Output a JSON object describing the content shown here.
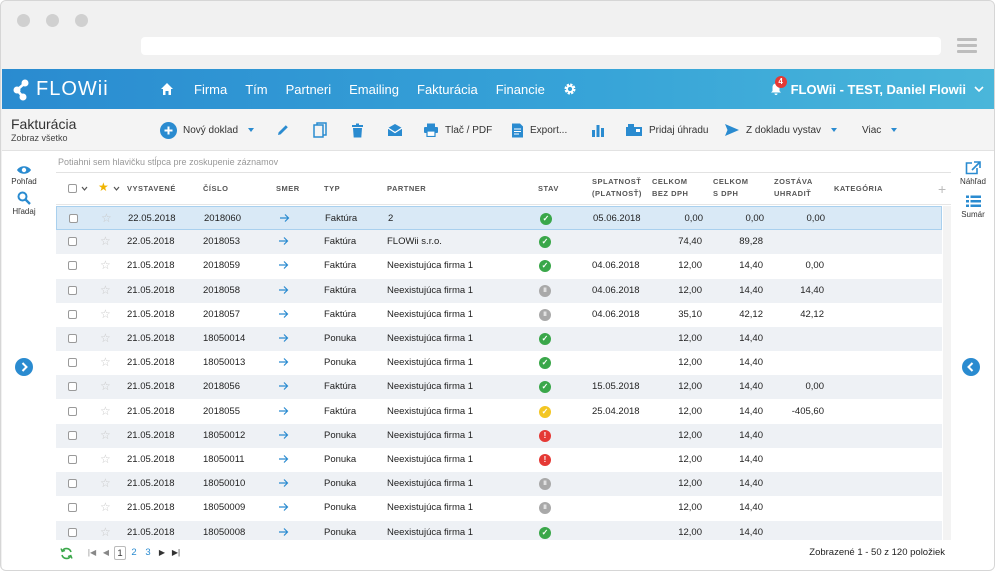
{
  "app": {
    "logo_text": "FLOWii",
    "brand_color": "#2a8bd0"
  },
  "nav": {
    "items": [
      "Firma",
      "Tím",
      "Partneri",
      "Emailing",
      "Fakturácia",
      "Financie"
    ],
    "notifications": "4",
    "user": "FLOWii - TEST, Daniel Flowii"
  },
  "toolbar": {
    "title": "Fakturácia",
    "subtitle": "Zobraz všetko",
    "new_doc": "Nový doklad",
    "print": "Tlač / PDF",
    "export": "Export...",
    "add_payment": "Pridaj úhradu",
    "issue_from": "Z dokladu vystav",
    "more": "Viac"
  },
  "left": {
    "view": "Pohľad",
    "search": "Hľadaj"
  },
  "right": {
    "preview": "Náhľad",
    "summary": "Sumár"
  },
  "grid": {
    "hint": "Potiahni sem hlavičku stĺpca pre zoskupenie záznamov",
    "headers": {
      "issued": "VYSTAVENÉ",
      "number": "ČÍSLO",
      "direction": "SMER",
      "type": "TYP",
      "partner": "PARTNER",
      "status": "STAV",
      "due1": "SPLATNOSŤ",
      "due2": "(PLATNOSŤ)",
      "net1": "CELKOM",
      "net2": "BEZ DPH",
      "gross1": "CELKOM",
      "gross2": "S DPH",
      "remain1": "ZOSTÁVA",
      "remain2": "UHRADIŤ",
      "category": "KATEGÓRIA"
    },
    "rows": [
      {
        "date": "22.05.2018",
        "num": "2018060",
        "type": "Faktúra",
        "partner": "2",
        "status": "ok",
        "due": "05.06.2018",
        "net": "0,00",
        "gross": "0,00",
        "remain": "0,00",
        "starred": false
      },
      {
        "date": "22.05.2018",
        "num": "2018053",
        "type": "Faktúra",
        "partner": "FLOWii s.r.o.",
        "status": "ok",
        "due": "",
        "net": "74,40",
        "gross": "89,28",
        "remain": "",
        "starred": false
      },
      {
        "date": "21.05.2018",
        "num": "2018059",
        "type": "Faktúra",
        "partner": "Neexistujúca firma 1",
        "status": "ok",
        "due": "04.06.2018",
        "net": "12,00",
        "gross": "14,40",
        "remain": "0,00",
        "starred": false
      },
      {
        "date": "21.05.2018",
        "num": "2018058",
        "type": "Faktúra",
        "partner": "Neexistujúca firma 1",
        "status": "pause",
        "due": "04.06.2018",
        "net": "12,00",
        "gross": "14,40",
        "remain": "14,40",
        "starred": false
      },
      {
        "date": "21.05.2018",
        "num": "2018057",
        "type": "Faktúra",
        "partner": "Neexistujúca firma 1",
        "status": "pause",
        "due": "04.06.2018",
        "net": "35,10",
        "gross": "42,12",
        "remain": "42,12",
        "starred": false
      },
      {
        "date": "21.05.2018",
        "num": "18050014",
        "type": "Ponuka",
        "partner": "Neexistujúca firma 1",
        "status": "ok",
        "due": "",
        "net": "12,00",
        "gross": "14,40",
        "remain": "",
        "starred": false
      },
      {
        "date": "21.05.2018",
        "num": "18050013",
        "type": "Ponuka",
        "partner": "Neexistujúca firma 1",
        "status": "ok",
        "due": "",
        "net": "12,00",
        "gross": "14,40",
        "remain": "",
        "starred": false
      },
      {
        "date": "21.05.2018",
        "num": "2018056",
        "type": "Faktúra",
        "partner": "Neexistujúca firma 1",
        "status": "ok",
        "due": "15.05.2018",
        "net": "12,00",
        "gross": "14,40",
        "remain": "0,00",
        "starred": false
      },
      {
        "date": "21.05.2018",
        "num": "2018055",
        "type": "Faktúra",
        "partner": "Neexistujúca firma 1",
        "status": "warn",
        "due": "25.04.2018",
        "net": "12,00",
        "gross": "14,40",
        "remain": "-405,60",
        "starred": false
      },
      {
        "date": "21.05.2018",
        "num": "18050012",
        "type": "Ponuka",
        "partner": "Neexistujúca firma 1",
        "status": "error",
        "due": "",
        "net": "12,00",
        "gross": "14,40",
        "remain": "",
        "starred": false
      },
      {
        "date": "21.05.2018",
        "num": "18050011",
        "type": "Ponuka",
        "partner": "Neexistujúca firma 1",
        "status": "error",
        "due": "",
        "net": "12,00",
        "gross": "14,40",
        "remain": "",
        "starred": false
      },
      {
        "date": "21.05.2018",
        "num": "18050010",
        "type": "Ponuka",
        "partner": "Neexistujúca firma 1",
        "status": "pause",
        "due": "",
        "net": "12,00",
        "gross": "14,40",
        "remain": "",
        "starred": false
      },
      {
        "date": "21.05.2018",
        "num": "18050009",
        "type": "Ponuka",
        "partner": "Neexistujúca firma 1",
        "status": "pause",
        "due": "",
        "net": "12,00",
        "gross": "14,40",
        "remain": "",
        "starred": false
      },
      {
        "date": "21.05.2018",
        "num": "18050008",
        "type": "Ponuka",
        "partner": "Neexistujúca firma 1",
        "status": "ok",
        "due": "",
        "net": "12,00",
        "gross": "14,40",
        "remain": "",
        "starred": false
      }
    ],
    "status_colors": {
      "ok": "#3aa74a",
      "pause": "#a9a9a9",
      "warn": "#f3c623",
      "error": "#e53935"
    }
  },
  "footer": {
    "pages": [
      "1",
      "2",
      "3"
    ],
    "current_page": "1",
    "summary": "Zobrazené 1 - 50 z 120 položiek"
  }
}
